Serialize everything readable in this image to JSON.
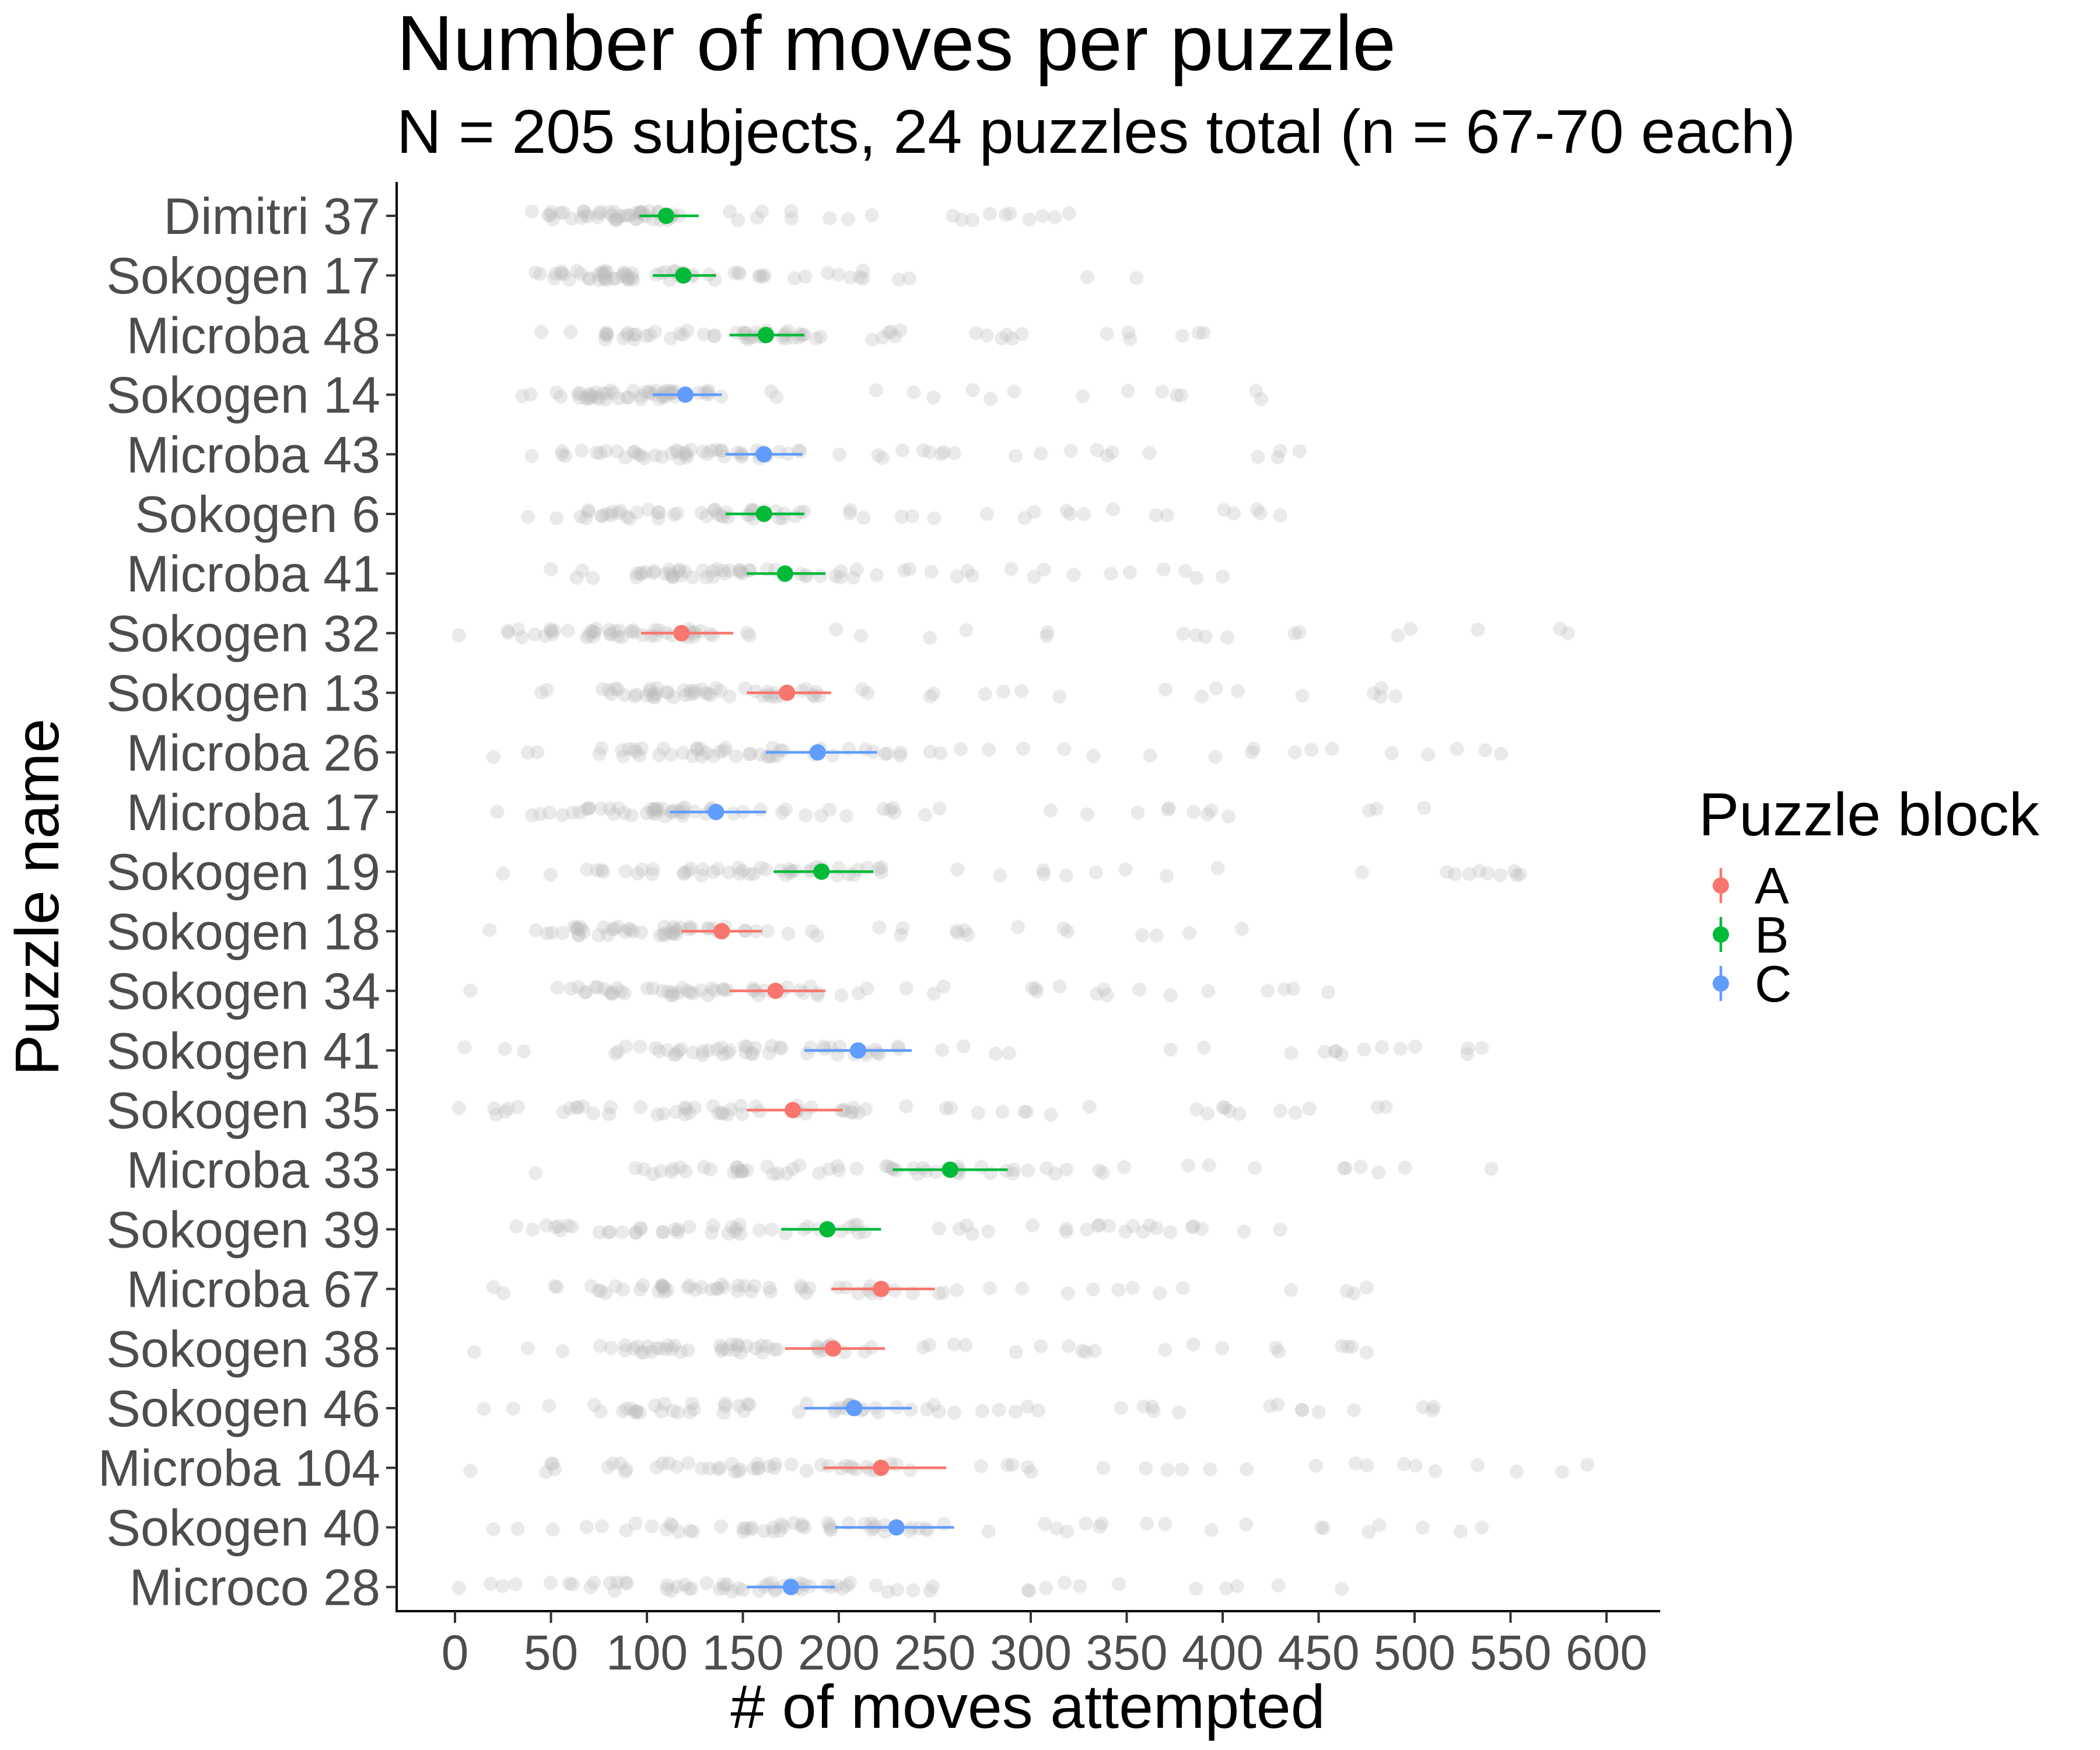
{
  "chart_data": {
    "type": "scatter",
    "title": "Number of moves per puzzle",
    "subtitle": "N = 205 subjects, 24 puzzles total (n = 67-70 each)",
    "xlabel": "# of moves attempted",
    "ylabel": "Puzzle name",
    "xlim": [
      0,
      600
    ],
    "x_ticks": [
      "0",
      "50",
      "100",
      "150",
      "200",
      "250",
      "300",
      "350",
      "400",
      "450",
      "500",
      "550",
      "600"
    ],
    "grid": false,
    "legend": {
      "title": "Puzzle block",
      "placement": "right",
      "entries": [
        {
          "label": "A",
          "color": "#F8766D"
        },
        {
          "label": "B",
          "color": "#00BA38"
        },
        {
          "label": "C",
          "color": "#619CFF"
        }
      ]
    },
    "raw_point_color": "#bdbdbd",
    "puzzles": [
      {
        "name": "Dimitri 37",
        "block": "B",
        "mean": 110,
        "ci": [
          96,
          127
        ],
        "range": [
          40,
          320
        ]
      },
      {
        "name": "Sokogen 17",
        "block": "B",
        "mean": 119,
        "ci": [
          103,
          136
        ],
        "range": [
          42,
          355
        ]
      },
      {
        "name": "Microba 48",
        "block": "B",
        "mean": 162,
        "ci": [
          143,
          182
        ],
        "range": [
          45,
          390
        ]
      },
      {
        "name": "Sokogen 14",
        "block": "C",
        "mean": 120,
        "ci": [
          103,
          139
        ],
        "range": [
          35,
          420
        ]
      },
      {
        "name": "Microba 43",
        "block": "C",
        "mean": 161,
        "ci": [
          141,
          181
        ],
        "range": [
          40,
          440
        ]
      },
      {
        "name": "Sokogen 6",
        "block": "B",
        "mean": 161,
        "ci": [
          141,
          182
        ],
        "range": [
          38,
          430
        ]
      },
      {
        "name": "Microba 41",
        "block": "B",
        "mean": 172,
        "ci": [
          152,
          193
        ],
        "range": [
          50,
          400
        ]
      },
      {
        "name": "Sokogen 32",
        "block": "A",
        "mean": 118,
        "ci": [
          97,
          145
        ],
        "range": [
          2,
          580
        ]
      },
      {
        "name": "Sokogen 13",
        "block": "A",
        "mean": 173,
        "ci": [
          152,
          196
        ],
        "range": [
          45,
          490
        ]
      },
      {
        "name": "Microba 26",
        "block": "C",
        "mean": 189,
        "ci": [
          162,
          220
        ],
        "range": [
          20,
          545
        ]
      },
      {
        "name": "Microba 17",
        "block": "C",
        "mean": 136,
        "ci": [
          112,
          162
        ],
        "range": [
          22,
          505
        ]
      },
      {
        "name": "Sokogen 19",
        "block": "B",
        "mean": 191,
        "ci": [
          166,
          218
        ],
        "range": [
          25,
          555
        ]
      },
      {
        "name": "Sokogen 18",
        "block": "A",
        "mean": 139,
        "ci": [
          118,
          160
        ],
        "range": [
          18,
          410
        ]
      },
      {
        "name": "Sokogen 34",
        "block": "A",
        "mean": 167,
        "ci": [
          143,
          193
        ],
        "range": [
          8,
          455
        ]
      },
      {
        "name": "Sokogen 41",
        "block": "C",
        "mean": 210,
        "ci": [
          182,
          238
        ],
        "range": [
          5,
          535
        ]
      },
      {
        "name": "Sokogen 35",
        "block": "A",
        "mean": 176,
        "ci": [
          152,
          202
        ],
        "range": [
          2,
          485
        ]
      },
      {
        "name": "Microba 33",
        "block": "B",
        "mean": 258,
        "ci": [
          228,
          288
        ],
        "range": [
          42,
          540
        ]
      },
      {
        "name": "Sokogen 39",
        "block": "B",
        "mean": 194,
        "ci": [
          170,
          222
        ],
        "range": [
          32,
          430
        ]
      },
      {
        "name": "Microba 67",
        "block": "A",
        "mean": 222,
        "ci": [
          196,
          250
        ],
        "range": [
          20,
          475
        ]
      },
      {
        "name": "Sokogen 38",
        "block": "A",
        "mean": 197,
        "ci": [
          172,
          224
        ],
        "range": [
          10,
          475
        ]
      },
      {
        "name": "Sokogen 46",
        "block": "C",
        "mean": 208,
        "ci": [
          182,
          238
        ],
        "range": [
          15,
          510
        ]
      },
      {
        "name": "Microba 104",
        "block": "A",
        "mean": 222,
        "ci": [
          192,
          256
        ],
        "range": [
          8,
          590
        ]
      },
      {
        "name": "Sokogen 40",
        "block": "C",
        "mean": 230,
        "ci": [
          198,
          260
        ],
        "range": [
          20,
          535
        ]
      },
      {
        "name": "Microco 28",
        "block": "C",
        "mean": 175,
        "ci": [
          152,
          198
        ],
        "range": [
          2,
          462
        ]
      }
    ]
  }
}
